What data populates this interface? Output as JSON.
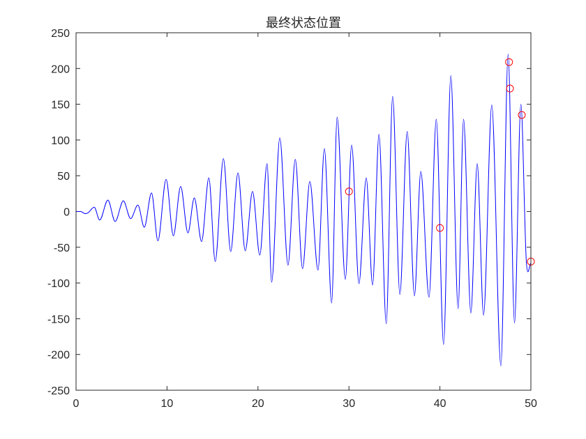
{
  "chart_data": {
    "type": "line",
    "title": "最终状态位置",
    "xlabel": "",
    "ylabel": "",
    "xlim": [
      0,
      50
    ],
    "ylim": [
      -250,
      250
    ],
    "xticks": [
      0,
      10,
      20,
      30,
      40,
      50
    ],
    "yticks": [
      -250,
      -200,
      -150,
      -100,
      -50,
      0,
      50,
      100,
      150,
      200,
      250
    ],
    "xtick_labels": [
      "0",
      "10",
      "20",
      "30",
      "40",
      "50"
    ],
    "ytick_labels": [
      "-250",
      "-200",
      "-150",
      "-100",
      "-50",
      "0",
      "50",
      "100",
      "150",
      "200",
      "250"
    ],
    "grid": false,
    "colors": {
      "line": "#0000ff",
      "markers": "#ff0000",
      "axes": "#262626"
    },
    "series": [
      {
        "style": "line",
        "x": [
          0,
          0.5,
          1.0,
          1.3,
          2.0,
          2.6,
          3.5,
          4.3,
          5.2,
          6.0,
          6.8,
          7.5,
          8.3,
          9.0,
          9.9,
          10.7,
          11.5,
          12.3,
          13.0,
          13.8,
          14.6,
          15.3,
          16.2,
          17.0,
          17.8,
          18.6,
          19.4,
          20.2,
          21.0,
          21.5,
          22.4,
          23.3,
          24.1,
          24.9,
          25.7,
          26.6,
          27.3,
          28.1,
          28.7,
          29.6,
          30.3,
          31.1,
          31.9,
          32.6,
          33.3,
          34.1,
          34.8,
          35.6,
          36.4,
          37.2,
          37.9,
          38.8,
          39.6,
          40.4,
          41.2,
          42.0,
          42.6,
          43.4,
          44.1,
          44.8,
          45.7,
          46.7,
          47.5,
          48.2,
          48.9,
          49.5,
          50.0
        ],
        "y": [
          0,
          0,
          -3,
          -2,
          6,
          -12,
          16,
          -14,
          15,
          -10,
          9,
          -22,
          26,
          -41,
          45,
          -34,
          35,
          -30,
          19,
          -42,
          47,
          -70,
          74,
          -56,
          54,
          -55,
          28,
          -61,
          67,
          -99,
          103,
          -75,
          73,
          -80,
          42,
          -82,
          88,
          -128,
          132,
          -95,
          93,
          -101,
          47,
          -103,
          108,
          -157,
          161,
          -116,
          112,
          -118,
          56,
          -120,
          129,
          -186,
          190,
          -136,
          129,
          -142,
          67,
          -145,
          149,
          -216,
          220,
          -156,
          150,
          -70,
          -72
        ]
      },
      {
        "style": "markers",
        "marker": "circle",
        "x": [
          30.0,
          40.0,
          47.6,
          47.7,
          49.0,
          50.0
        ],
        "y": [
          28,
          -23,
          209,
          172,
          135,
          -70
        ]
      }
    ]
  }
}
